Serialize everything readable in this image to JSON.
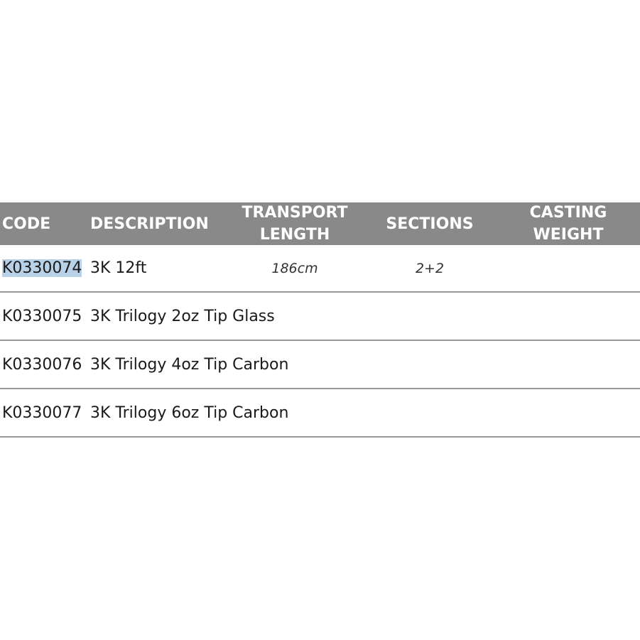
{
  "header": {
    "code": "CODE",
    "description": "DESCRIPTION",
    "transport_length": "TRANSPORT LENGTH",
    "sections": "SECTIONS",
    "casting_weight": "CASTING WEIGHT"
  },
  "rows": [
    {
      "code": "K0330074",
      "description": "3K 12ft",
      "transport_length": "186cm",
      "sections": "2+2",
      "casting_weight": ""
    },
    {
      "code": "K0330075",
      "description": "3K Trilogy 2oz Tip Glass",
      "transport_length": "",
      "sections": "",
      "casting_weight": ""
    },
    {
      "code": "K0330076",
      "description": "3K Trilogy 4oz Tip Carbon",
      "transport_length": "",
      "sections": "",
      "casting_weight": ""
    },
    {
      "code": "K0330077",
      "description": "3K Trilogy 6oz Tip Carbon",
      "transport_length": "",
      "sections": "",
      "casting_weight": ""
    }
  ],
  "colors": {
    "header_bg": "#898989",
    "selection_highlight": "#b9d1e6"
  }
}
